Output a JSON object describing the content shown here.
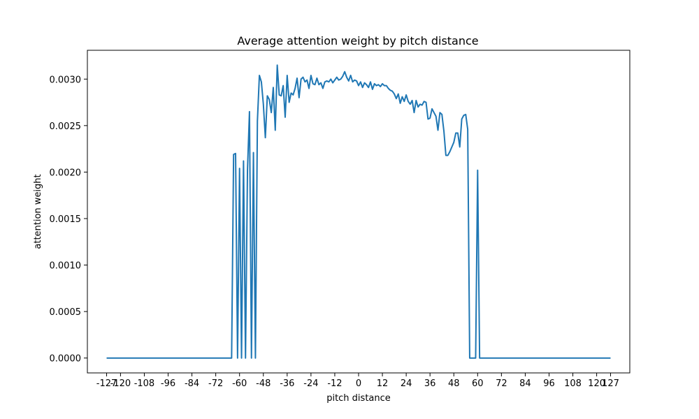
{
  "chart_data": {
    "type": "line",
    "title": "Average attention weight by pitch distance",
    "xlabel": "pitch distance",
    "ylabel": "attention weight",
    "xlim": [
      -136.7,
      136.7
    ],
    "ylim": [
      -0.00016,
      0.00331
    ],
    "grid": false,
    "x_ticks": [
      -127,
      -120,
      -108,
      -96,
      -84,
      -72,
      -60,
      -48,
      -36,
      -24,
      -12,
      0,
      12,
      24,
      36,
      48,
      60,
      72,
      84,
      96,
      108,
      120,
      127
    ],
    "x_tick_labels": [
      "-127",
      "-120",
      "-108",
      "-96",
      "-84",
      "-72",
      "-60",
      "-48",
      "-36",
      "-24",
      "-12",
      "0",
      "12",
      "24",
      "36",
      "48",
      "60",
      "72",
      "84",
      "96",
      "108",
      "120",
      "127"
    ],
    "y_ticks": [
      0,
      0.0005,
      0.001,
      0.0015,
      0.002,
      0.0025,
      0.003
    ],
    "y_tick_labels": [
      "0.0000",
      "0.0005",
      "0.0010",
      "0.0015",
      "0.0020",
      "0.0025",
      "0.0030"
    ],
    "series": [
      {
        "color": "#1f77b4",
        "points": [
          [
            -127,
            0
          ],
          [
            -64,
            0
          ],
          [
            -63,
            0.00219
          ],
          [
            -62,
            0.0022
          ],
          [
            -61,
            0
          ],
          [
            -60,
            0.00204
          ],
          [
            -59,
            0
          ],
          [
            -58,
            0.00212
          ],
          [
            -57,
            0
          ],
          [
            -56,
            0.00202
          ],
          [
            -55,
            0.00265
          ],
          [
            -54,
            0
          ],
          [
            -53,
            0.00221
          ],
          [
            -52,
            0
          ],
          [
            -51,
            0.00255
          ],
          [
            -50,
            0.00304
          ],
          [
            -49,
            0.00297
          ],
          [
            -48,
            0.00273
          ],
          [
            -47,
            0.00237
          ],
          [
            -46,
            0.00282
          ],
          [
            -45,
            0.00278
          ],
          [
            -44,
            0.00264
          ],
          [
            -43,
            0.00291
          ],
          [
            -42,
            0.00245
          ],
          [
            -41,
            0.00315
          ],
          [
            -40,
            0.00283
          ],
          [
            -39,
            0.00282
          ],
          [
            -38,
            0.00293
          ],
          [
            -37,
            0.00259
          ],
          [
            -36,
            0.00304
          ],
          [
            -35,
            0.00275
          ],
          [
            -34,
            0.00285
          ],
          [
            -33,
            0.00283
          ],
          [
            -32,
            0.0029
          ],
          [
            -31,
            0.00301
          ],
          [
            -30,
            0.0028
          ],
          [
            -29,
            0.003
          ],
          [
            -28,
            0.00302
          ],
          [
            -27,
            0.00297
          ],
          [
            -26,
            0.00299
          ],
          [
            -25,
            0.0029
          ],
          [
            -24,
            0.00304
          ],
          [
            -23,
            0.00295
          ],
          [
            -22,
            0.00294
          ],
          [
            -21,
            0.00301
          ],
          [
            -20,
            0.00294
          ],
          [
            -19,
            0.00296
          ],
          [
            -18,
            0.0029
          ],
          [
            -17,
            0.00297
          ],
          [
            -16,
            0.00298
          ],
          [
            -15,
            0.00297
          ],
          [
            -14,
            0.003
          ],
          [
            -13,
            0.00296
          ],
          [
            -12,
            0.00299
          ],
          [
            -11,
            0.00302
          ],
          [
            -10,
            0.00299
          ],
          [
            -9,
            0.003
          ],
          [
            -8,
            0.00303
          ],
          [
            -7,
            0.00308
          ],
          [
            -6,
            0.00302
          ],
          [
            -5,
            0.00298
          ],
          [
            -4,
            0.00304
          ],
          [
            -3,
            0.00297
          ],
          [
            -2,
            0.00299
          ],
          [
            -1,
            0.00298
          ],
          [
            0,
            0.00293
          ],
          [
            1,
            0.00297
          ],
          [
            2,
            0.00291
          ],
          [
            3,
            0.00296
          ],
          [
            4,
            0.00294
          ],
          [
            5,
            0.00291
          ],
          [
            6,
            0.00297
          ],
          [
            7,
            0.00289
          ],
          [
            8,
            0.00295
          ],
          [
            9,
            0.00293
          ],
          [
            10,
            0.00294
          ],
          [
            11,
            0.00292
          ],
          [
            12,
            0.00295
          ],
          [
            13,
            0.00293
          ],
          [
            14,
            0.00293
          ],
          [
            15,
            0.0029
          ],
          [
            16,
            0.00288
          ],
          [
            17,
            0.00287
          ],
          [
            18,
            0.00284
          ],
          [
            19,
            0.00279
          ],
          [
            20,
            0.00284
          ],
          [
            21,
            0.00274
          ],
          [
            22,
            0.00281
          ],
          [
            23,
            0.00276
          ],
          [
            24,
            0.00283
          ],
          [
            25,
            0.00276
          ],
          [
            26,
            0.00273
          ],
          [
            27,
            0.00277
          ],
          [
            28,
            0.00264
          ],
          [
            29,
            0.00277
          ],
          [
            30,
            0.0027
          ],
          [
            31,
            0.00273
          ],
          [
            32,
            0.00272
          ],
          [
            33,
            0.00276
          ],
          [
            34,
            0.00275
          ],
          [
            35,
            0.00257
          ],
          [
            36,
            0.00258
          ],
          [
            37,
            0.00268
          ],
          [
            38,
            0.00264
          ],
          [
            39,
            0.0026
          ],
          [
            40,
            0.00245
          ],
          [
            41,
            0.00264
          ],
          [
            42,
            0.00262
          ],
          [
            43,
            0.00244
          ],
          [
            44,
            0.00218
          ],
          [
            45,
            0.00218
          ],
          [
            46,
            0.00222
          ],
          [
            47,
            0.00227
          ],
          [
            48,
            0.00232
          ],
          [
            49,
            0.00242
          ],
          [
            50,
            0.00242
          ],
          [
            51,
            0.00227
          ],
          [
            52,
            0.00257
          ],
          [
            53,
            0.00261
          ],
          [
            54,
            0.00262
          ],
          [
            55,
            0.00246
          ],
          [
            56,
            0
          ],
          [
            57,
            0
          ],
          [
            58,
            0
          ],
          [
            59,
            0
          ],
          [
            60,
            0.00202
          ],
          [
            61,
            0
          ],
          [
            127,
            0
          ]
        ]
      }
    ]
  }
}
